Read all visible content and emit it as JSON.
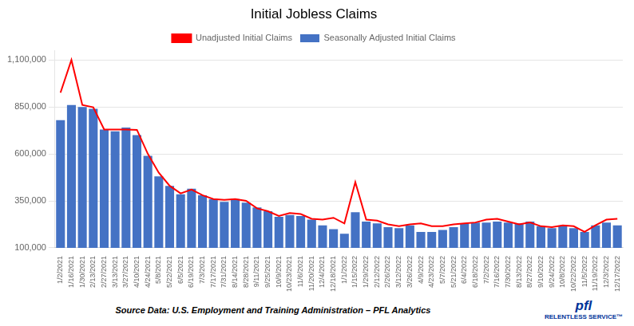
{
  "chart_data": {
    "type": "bar",
    "title": "Initial Jobless Claims",
    "annotations": [
      "Source Data: U.S. Employment and Training Administration – PFL Analytics",
      "pfl",
      "RELENTLESS SERVICE™"
    ],
    "categories": [
      "1/2/2021",
      "1/16/2021",
      "1/30/2021",
      "2/13/2021",
      "2/27/2021",
      "3/13/2021",
      "3/27/2021",
      "4/10/2021",
      "4/24/2021",
      "5/8/2021",
      "5/22/2021",
      "6/5/2021",
      "6/19/2021",
      "7/3/2021",
      "7/17/2021",
      "7/31/2021",
      "8/14/2021",
      "8/28/2021",
      "9/11/2021",
      "9/25/2021",
      "10/9/2021",
      "10/23/2021",
      "11/6/2021",
      "11/20/2021",
      "12/4/2021",
      "12/18/2021",
      "1/1/2022",
      "1/15/2022",
      "1/29/2022",
      "2/12/2022",
      "2/26/2022",
      "3/12/2022",
      "3/26/2022",
      "4/9/2022",
      "4/23/2022",
      "5/7/2022",
      "5/21/2022",
      "6/4/2022",
      "6/18/2022",
      "7/2/2022",
      "7/16/2022",
      "7/30/2022",
      "8/13/2022",
      "8/27/2022",
      "9/10/2022",
      "9/24/2022",
      "10/8/2022",
      "10/22/2022",
      "11/5/2022",
      "11/19/2022",
      "12/3/2022",
      "12/17/2022"
    ],
    "series": [
      {
        "name": "Unadjusted Initial Claims",
        "type": "line",
        "color": "#FF0000",
        "values": [
          926000,
          1100000,
          860000,
          848000,
          730000,
          730000,
          730000,
          728000,
          600000,
          500000,
          430000,
          390000,
          410000,
          380000,
          360000,
          355000,
          360000,
          350000,
          310000,
          295000,
          270000,
          285000,
          280000,
          255000,
          250000,
          260000,
          230000,
          450000,
          250000,
          245000,
          225000,
          215000,
          225000,
          230000,
          215000,
          215000,
          225000,
          230000,
          235000,
          250000,
          255000,
          240000,
          225000,
          235000,
          215000,
          210000,
          220000,
          215000,
          185000,
          220000,
          250000,
          255000
        ]
      },
      {
        "name": "Seasonally Adjusted Initial Claims",
        "type": "bar",
        "color": "#4472C4",
        "values": [
          780000,
          860000,
          850000,
          840000,
          730000,
          720000,
          740000,
          700000,
          590000,
          480000,
          430000,
          385000,
          415000,
          380000,
          360000,
          345000,
          360000,
          340000,
          315000,
          295000,
          265000,
          275000,
          270000,
          250000,
          220000,
          200000,
          175000,
          290000,
          240000,
          230000,
          210000,
          205000,
          220000,
          185000,
          185000,
          195000,
          210000,
          230000,
          235000,
          235000,
          240000,
          235000,
          230000,
          240000,
          215000,
          205000,
          215000,
          205000,
          185000,
          220000,
          235000,
          220000
        ]
      }
    ],
    "ylim": [
      100000,
      1150000
    ],
    "yticks": [
      {
        "value": 100000,
        "label": "100,000"
      },
      {
        "value": 350000,
        "label": "350,000"
      },
      {
        "value": 600000,
        "label": "600,000"
      },
      {
        "value": 850000,
        "label": "850,000"
      },
      {
        "value": 1100000,
        "label": "1,100,000"
      }
    ],
    "grid": true,
    "legend": "top"
  }
}
